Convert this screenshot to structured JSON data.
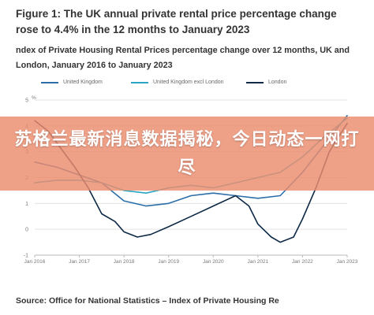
{
  "figure": {
    "title": "Figure 1: The UK annual private rental price percentage change rose to 4.4% in the 12 months to January 2023",
    "subtitle": "ndex of Private Housing Rental Prices percentage change over 12 months, UK and London, January 2016 to January 2023",
    "source": "Source: Office for National Statistics – Index of Private Housing Re"
  },
  "banner": {
    "text": "苏格兰最新消息数据揭秘，今日动态一网打尽"
  },
  "colors": {
    "uk": "#2B6EA8",
    "uk_excl_london": "#2BA4C4",
    "london": "#0E2A47",
    "banner": "#EB8C6E"
  },
  "chart_data": {
    "type": "line",
    "x_ticks": [
      "Jan 2016",
      "Jan 2017",
      "Jan 2018",
      "Jan 2019",
      "Jan 2020",
      "Jan 2021",
      "Jan 2022",
      "Jan 2023"
    ],
    "y_ticks": [
      "-1",
      "0",
      "1",
      "2",
      "3",
      "4",
      "5"
    ],
    "y_unit": "%",
    "ylim": [
      -1,
      5
    ],
    "grid": true,
    "legend_position": "top",
    "series": [
      {
        "name": "United Kingdom",
        "color": "#2B6EA8",
        "x": [
          2016.0,
          2016.5,
          2017.0,
          2017.5,
          2018.0,
          2018.5,
          2019.0,
          2019.5,
          2020.0,
          2020.5,
          2021.0,
          2021.5,
          2022.0,
          2022.5,
          2023.0
        ],
        "y": [
          2.6,
          2.4,
          2.1,
          1.8,
          1.1,
          0.9,
          1.0,
          1.3,
          1.4,
          1.3,
          1.2,
          1.3,
          2.2,
          3.3,
          4.4
        ]
      },
      {
        "name": "United Kingdom excl London",
        "color": "#2BA4C4",
        "x": [
          2016.0,
          2016.5,
          2017.0,
          2017.5,
          2018.0,
          2018.5,
          2019.0,
          2019.5,
          2020.0,
          2020.5,
          2021.0,
          2021.5,
          2022.0,
          2022.5,
          2023.0
        ],
        "y": [
          1.8,
          1.9,
          1.9,
          1.8,
          1.5,
          1.4,
          1.6,
          1.7,
          1.6,
          1.8,
          2.0,
          2.2,
          2.8,
          3.6,
          4.3
        ]
      },
      {
        "name": "London",
        "color": "#0E2A47",
        "x": [
          2016.0,
          2016.3,
          2016.6,
          2016.9,
          2017.2,
          2017.5,
          2017.8,
          2018.0,
          2018.3,
          2018.6,
          2019.0,
          2019.5,
          2020.0,
          2020.5,
          2020.8,
          2021.0,
          2021.3,
          2021.5,
          2021.8,
          2022.0,
          2022.3,
          2022.6,
          2023.0
        ],
        "y": [
          4.2,
          3.8,
          3.1,
          2.4,
          1.6,
          0.6,
          0.3,
          -0.1,
          -0.3,
          -0.2,
          0.1,
          0.5,
          0.9,
          1.3,
          0.9,
          0.2,
          -0.3,
          -0.5,
          -0.3,
          0.4,
          1.6,
          3.0,
          4.1
        ]
      }
    ]
  }
}
